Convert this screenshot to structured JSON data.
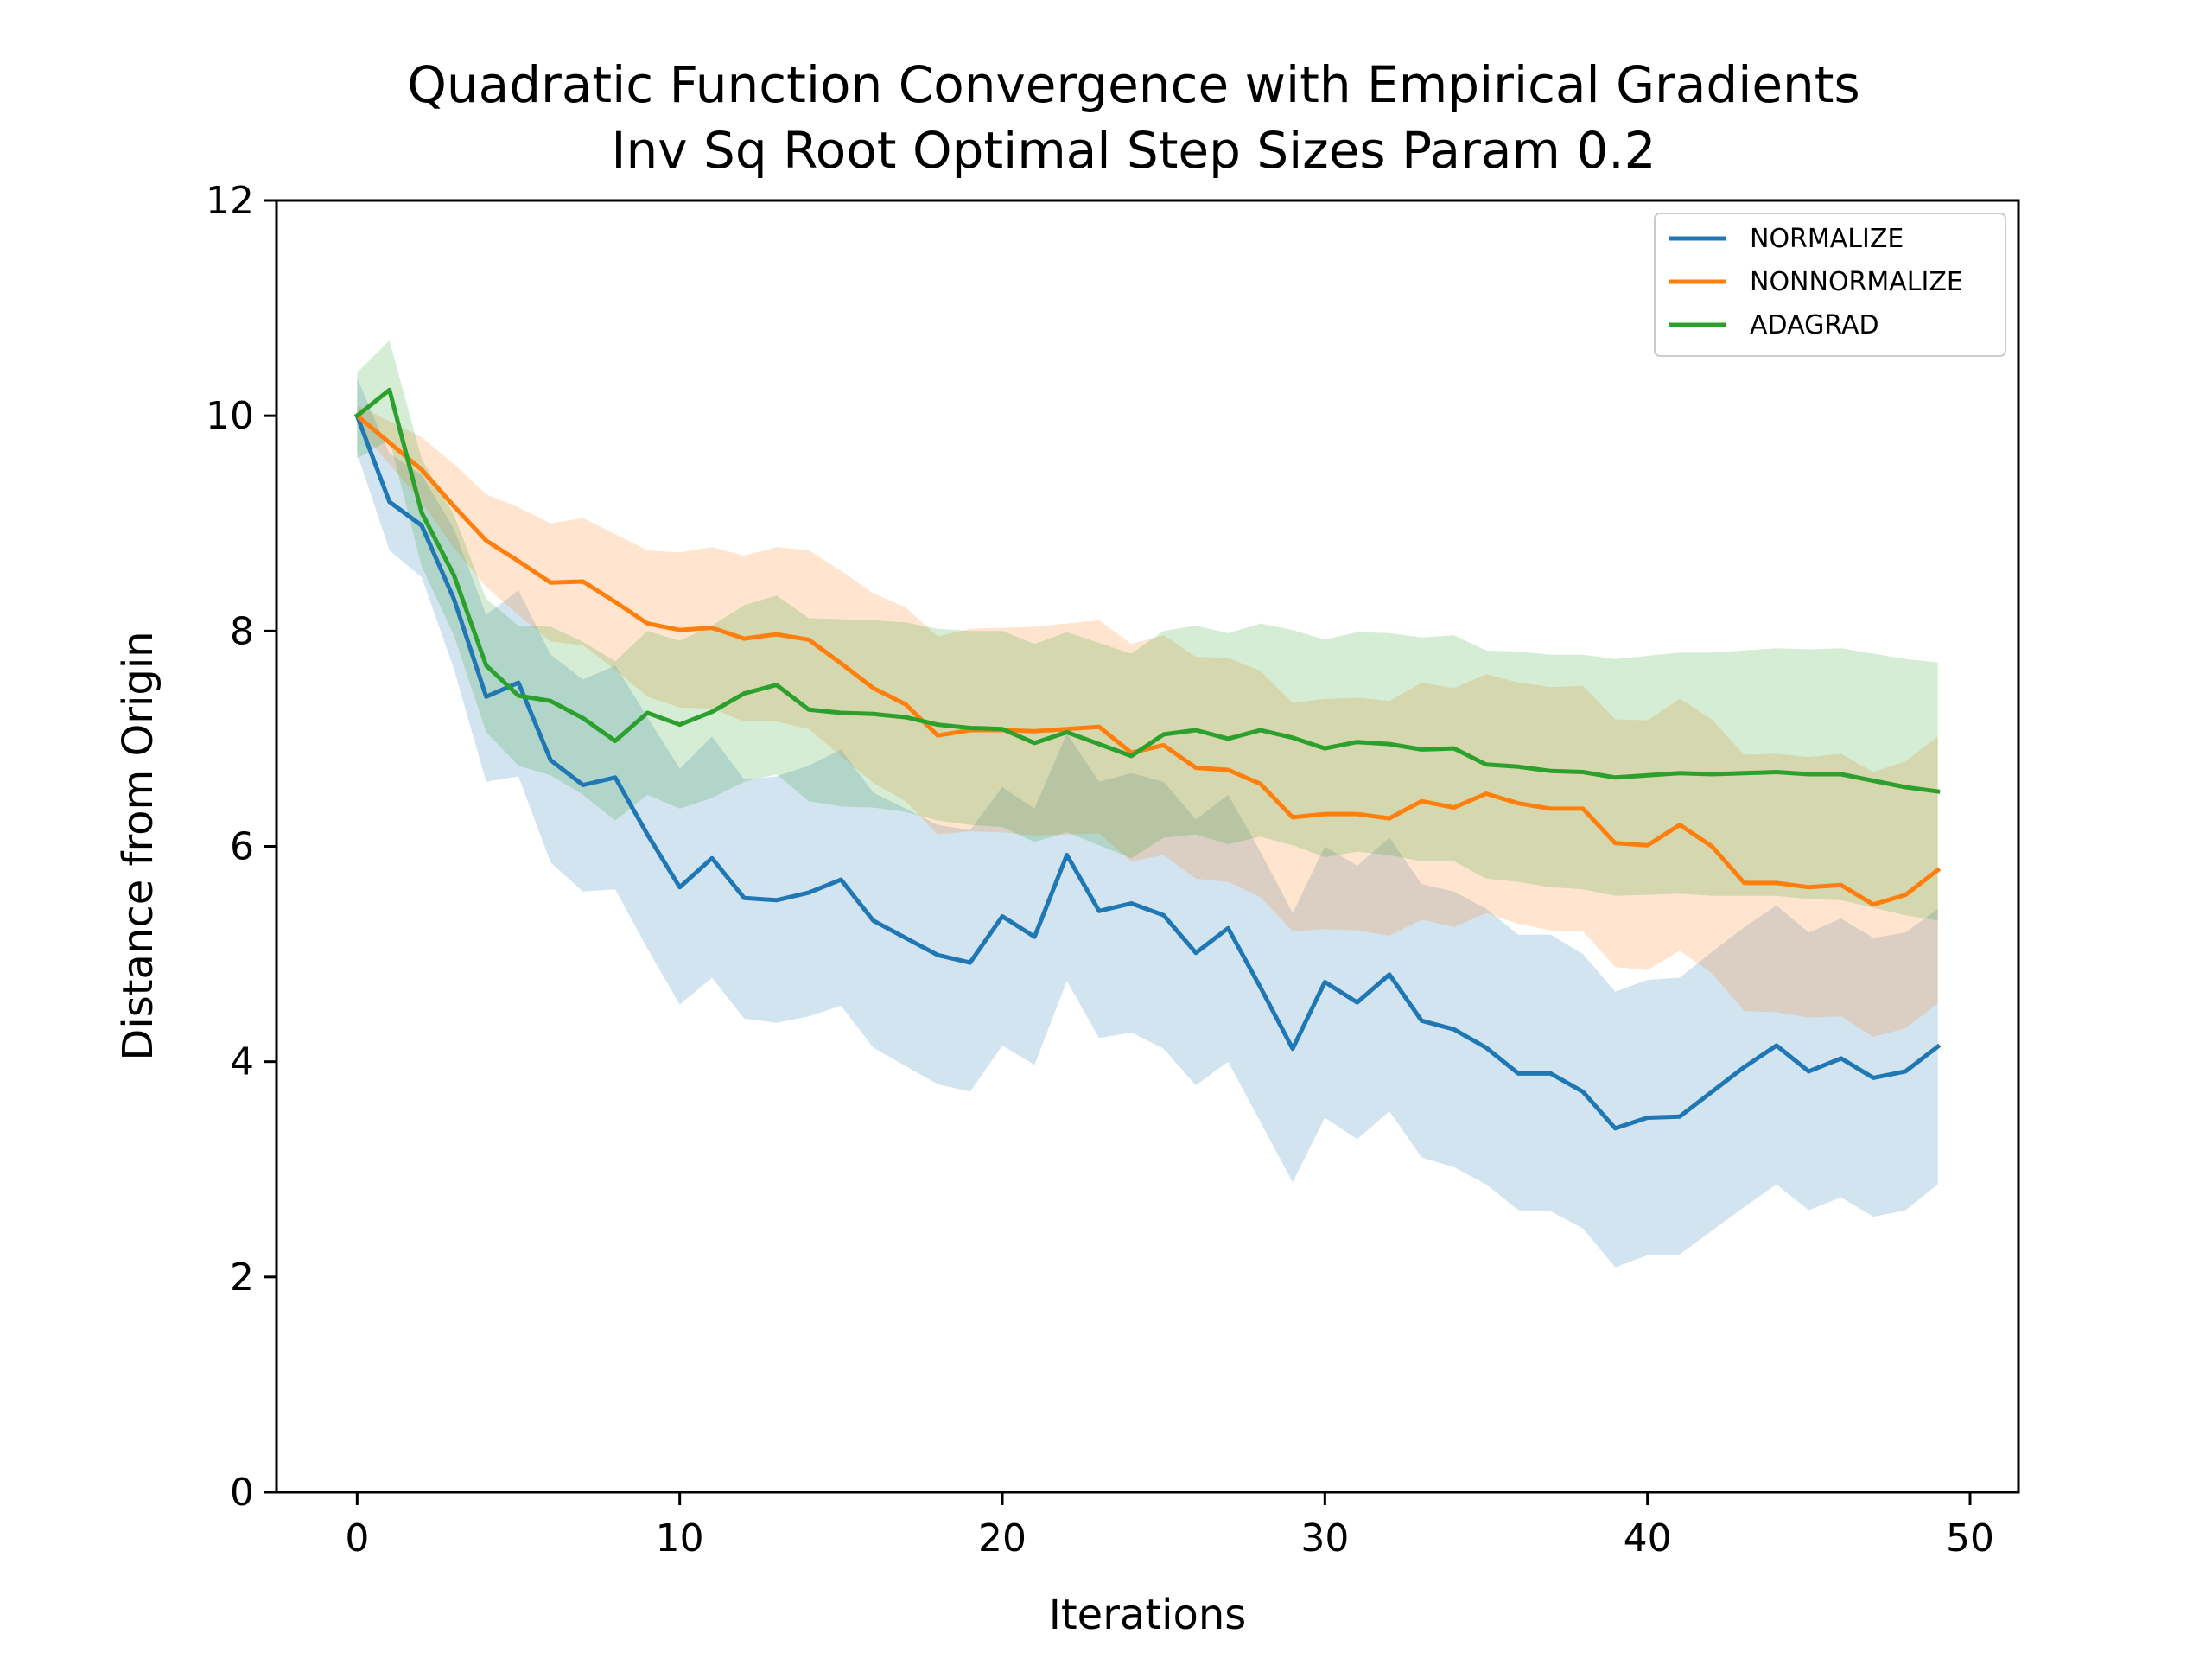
{
  "chart_data": {
    "type": "line",
    "title": "Quadratic Function Convergence with Empirical Gradients",
    "subtitle": "Inv Sq Root Optimal Step Sizes Param 0.2",
    "xlabel": "Iterations",
    "ylabel": "Distance from Origin",
    "xlim": [
      -2.5,
      51.5
    ],
    "ylim": [
      0,
      12
    ],
    "xticks": [
      0,
      10,
      20,
      30,
      40,
      50
    ],
    "yticks": [
      0,
      2,
      4,
      6,
      8,
      10,
      12
    ],
    "grid": false,
    "legend_position": "top-right",
    "x": [
      0,
      1,
      2,
      3,
      4,
      5,
      6,
      7,
      8,
      9,
      10,
      11,
      12,
      13,
      14,
      15,
      16,
      17,
      18,
      19,
      20,
      21,
      22,
      23,
      24,
      25,
      26,
      27,
      28,
      29,
      30,
      31,
      32,
      33,
      34,
      35,
      36,
      37,
      38,
      39,
      40,
      41,
      42,
      43,
      44,
      45,
      46,
      47,
      48,
      49
    ],
    "series": [
      {
        "name": "NORMALIZE",
        "color": "#1f77b4",
        "values": [
          10.0,
          9.2,
          8.98,
          8.3,
          7.39,
          7.52,
          6.8,
          6.57,
          6.64,
          6.11,
          5.62,
          5.89,
          5.52,
          5.5,
          5.57,
          5.69,
          5.31,
          5.15,
          4.99,
          4.92,
          5.35,
          5.16,
          5.92,
          5.4,
          5.47,
          5.36,
          5.01,
          5.24,
          4.69,
          4.12,
          4.74,
          4.55,
          4.81,
          4.38,
          4.3,
          4.13,
          3.89,
          3.89,
          3.72,
          3.38,
          3.48,
          3.49,
          3.72,
          3.95,
          4.15,
          3.91,
          4.03,
          3.85,
          3.91,
          4.14
        ],
        "upper": [
          10.35,
          9.65,
          9.45,
          8.95,
          8.15,
          8.38,
          7.78,
          7.55,
          7.68,
          7.2,
          6.72,
          7.02,
          6.62,
          6.65,
          6.75,
          6.9,
          6.5,
          6.35,
          6.2,
          6.15,
          6.55,
          6.35,
          7.05,
          6.6,
          6.68,
          6.6,
          6.25,
          6.48,
          5.95,
          5.38,
          6.0,
          5.82,
          6.08,
          5.65,
          5.58,
          5.42,
          5.18,
          5.18,
          5.0,
          4.65,
          4.76,
          4.78,
          5.02,
          5.25,
          5.45,
          5.2,
          5.33,
          5.15,
          5.2,
          5.42
        ],
        "lower": [
          9.65,
          8.75,
          8.5,
          7.65,
          6.6,
          6.65,
          5.85,
          5.58,
          5.6,
          5.05,
          4.53,
          4.78,
          4.4,
          4.36,
          4.42,
          4.52,
          4.13,
          3.96,
          3.79,
          3.72,
          4.15,
          3.97,
          4.75,
          4.22,
          4.27,
          4.12,
          3.78,
          4.0,
          3.44,
          2.88,
          3.48,
          3.28,
          3.54,
          3.11,
          3.02,
          2.86,
          2.62,
          2.61,
          2.45,
          2.09,
          2.2,
          2.21,
          2.43,
          2.65,
          2.86,
          2.62,
          2.74,
          2.56,
          2.62,
          2.86
        ]
      },
      {
        "name": "NONNORMALIZE",
        "color": "#ff7f0e",
        "values": [
          10.0,
          9.75,
          9.5,
          9.16,
          8.84,
          8.65,
          8.45,
          8.46,
          8.27,
          8.07,
          8.01,
          8.03,
          7.93,
          7.97,
          7.92,
          7.7,
          7.47,
          7.32,
          7.03,
          7.08,
          7.08,
          7.07,
          7.09,
          7.11,
          6.87,
          6.94,
          6.73,
          6.71,
          6.58,
          6.27,
          6.3,
          6.3,
          6.26,
          6.42,
          6.36,
          6.49,
          6.4,
          6.35,
          6.35,
          6.03,
          6.01,
          6.2,
          6.0,
          5.66,
          5.66,
          5.62,
          5.64,
          5.46,
          5.55,
          5.78
        ],
        "upper": [
          10.1,
          9.95,
          9.8,
          9.55,
          9.27,
          9.15,
          9.0,
          9.05,
          8.9,
          8.75,
          8.73,
          8.78,
          8.7,
          8.78,
          8.75,
          8.56,
          8.35,
          8.22,
          7.95,
          8.02,
          8.03,
          8.04,
          8.07,
          8.1,
          7.88,
          7.96,
          7.76,
          7.75,
          7.63,
          7.33,
          7.37,
          7.38,
          7.35,
          7.52,
          7.47,
          7.6,
          7.52,
          7.48,
          7.49,
          7.18,
          7.17,
          7.37,
          7.18,
          6.85,
          6.86,
          6.83,
          6.86,
          6.69,
          6.79,
          7.02
        ],
        "lower": [
          9.9,
          9.55,
          9.2,
          8.77,
          8.41,
          8.15,
          7.9,
          7.87,
          7.64,
          7.39,
          7.29,
          7.28,
          7.16,
          7.16,
          7.09,
          6.84,
          6.59,
          6.42,
          6.11,
          6.14,
          6.13,
          6.1,
          6.11,
          6.12,
          5.86,
          5.92,
          5.7,
          5.67,
          5.53,
          5.21,
          5.23,
          5.22,
          5.17,
          5.32,
          5.25,
          5.38,
          5.28,
          5.22,
          5.21,
          4.88,
          4.85,
          5.03,
          4.82,
          4.47,
          4.46,
          4.41,
          4.42,
          4.23,
          4.31,
          4.54
        ]
      },
      {
        "name": "ADAGRAD",
        "color": "#2ca02c",
        "values": [
          10.0,
          10.24,
          9.1,
          8.52,
          7.68,
          7.4,
          7.35,
          7.19,
          6.98,
          7.24,
          7.13,
          7.25,
          7.42,
          7.5,
          7.27,
          7.24,
          7.23,
          7.2,
          7.13,
          7.1,
          7.09,
          6.96,
          7.06,
          6.95,
          6.84,
          7.04,
          7.08,
          7.0,
          7.08,
          7.01,
          6.91,
          6.97,
          6.95,
          6.9,
          6.91,
          6.76,
          6.74,
          6.7,
          6.69,
          6.64,
          6.66,
          6.68,
          6.67,
          6.68,
          6.69,
          6.67,
          6.67,
          6.61,
          6.55,
          6.51
        ],
        "upper": [
          10.4,
          10.7,
          9.6,
          9.08,
          8.3,
          8.05,
          8.04,
          7.9,
          7.72,
          8.0,
          7.91,
          8.05,
          8.24,
          8.33,
          8.12,
          8.11,
          8.1,
          8.08,
          8.02,
          8.0,
          8.0,
          7.88,
          7.99,
          7.89,
          7.79,
          8.0,
          8.05,
          7.98,
          8.07,
          8.01,
          7.92,
          7.99,
          7.98,
          7.94,
          7.96,
          7.82,
          7.81,
          7.78,
          7.78,
          7.74,
          7.77,
          7.8,
          7.8,
          7.82,
          7.84,
          7.83,
          7.84,
          7.79,
          7.74,
          7.71
        ],
        "lower": [
          9.6,
          9.78,
          8.6,
          7.96,
          7.06,
          6.75,
          6.66,
          6.48,
          6.24,
          6.48,
          6.35,
          6.45,
          6.6,
          6.67,
          6.42,
          6.37,
          6.36,
          6.32,
          6.24,
          6.2,
          6.18,
          6.04,
          6.13,
          6.01,
          5.89,
          6.08,
          6.11,
          6.02,
          6.09,
          6.01,
          5.9,
          5.95,
          5.92,
          5.86,
          5.86,
          5.7,
          5.67,
          5.62,
          5.6,
          5.54,
          5.55,
          5.56,
          5.54,
          5.54,
          5.54,
          5.51,
          5.5,
          5.43,
          5.36,
          5.31
        ]
      }
    ]
  }
}
